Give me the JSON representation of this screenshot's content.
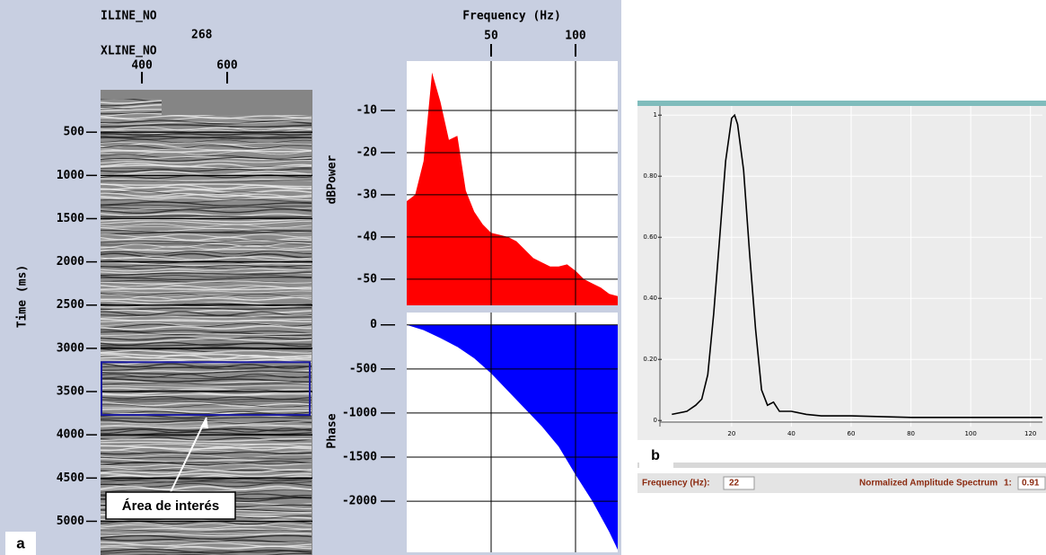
{
  "chart_data": [
    {
      "type": "seismic",
      "inline_label": "ILINE_NO",
      "inline": 268,
      "xline_label": "XLINE_NO",
      "y_label": "Time (ms)",
      "xlim": [
        303,
        800
      ],
      "xticks": [
        400,
        600
      ],
      "ylim": [
        5390,
        10
      ],
      "yticks": [
        500,
        1000,
        1500,
        2000,
        2500,
        3000,
        3500,
        4000,
        4500,
        5000
      ],
      "grid": true,
      "highlight": {
        "y": [
          3160,
          3770
        ],
        "label": "Área de interés"
      },
      "panel_label": "a"
    },
    {
      "type": "area",
      "x_label": "Frequency (Hz)",
      "y_label": "dBPower",
      "color": "#ff0000",
      "fill_to": "bottom",
      "x": [
        0,
        5,
        10,
        15,
        20,
        25,
        30,
        35,
        40,
        45,
        50,
        55,
        60,
        65,
        70,
        75,
        80,
        85,
        90,
        95,
        100,
        105,
        110,
        115,
        120,
        125
      ],
      "values": [
        -31.5,
        -30,
        -22,
        -1,
        -8,
        -17,
        -16,
        -29,
        -34,
        -37,
        -39,
        -39.5,
        -40,
        -41,
        -43,
        -45,
        -46,
        -47,
        -47,
        -46.5,
        -48,
        -50,
        -51,
        -52,
        -53.5,
        -54
      ],
      "xlim": [
        0,
        125
      ],
      "xticks": [
        50,
        100
      ],
      "ylim": [
        -56.2,
        1.7
      ],
      "yticks": [
        -10,
        -20,
        -30,
        -40,
        -50
      ],
      "grid": true
    },
    {
      "type": "area",
      "y_label": "Phase",
      "color": "#0000ff",
      "fill_to": "zero",
      "x": [
        0,
        10,
        20,
        30,
        40,
        50,
        60,
        70,
        80,
        90,
        100,
        110,
        120,
        125
      ],
      "values": [
        0,
        -60,
        -150,
        -250,
        -380,
        -550,
        -750,
        -950,
        -1150,
        -1380,
        -1700,
        -2000,
        -2350,
        -2550
      ],
      "xlim": [
        0,
        125
      ],
      "xticks": [
        50,
        100
      ],
      "ylim": [
        -2580,
        140
      ],
      "yticks": [
        0,
        -500,
        -1000,
        -1500,
        -2000
      ],
      "grid": true
    },
    {
      "type": "line",
      "color": "#000000",
      "panel_label": "b",
      "x": [
        0,
        5,
        8,
        10,
        12,
        14,
        16,
        18,
        20,
        21,
        22,
        24,
        26,
        28,
        30,
        32,
        34,
        36,
        40,
        45,
        50,
        60,
        80,
        100,
        124
      ],
      "values": [
        0.02,
        0.03,
        0.05,
        0.07,
        0.15,
        0.35,
        0.6,
        0.85,
        0.99,
        1,
        0.97,
        0.82,
        0.55,
        0.3,
        0.1,
        0.05,
        0.06,
        0.03,
        0.03,
        0.02,
        0.015,
        0.015,
        0.01,
        0.01,
        0.01
      ],
      "xlim": [
        -4,
        124
      ],
      "xticks": [
        20,
        40,
        60,
        80,
        100,
        120
      ],
      "ylim": [
        -0.02,
        1.03
      ],
      "yticks": [
        0,
        {
          "value": 0.2,
          "label": "0.20"
        },
        {
          "value": 0.4,
          "label": "0.40"
        },
        {
          "value": 0.6,
          "label": "0.60"
        },
        {
          "value": 0.8,
          "label": "0.80"
        },
        1
      ],
      "grid": true,
      "readout": {
        "frequency_label": "Frequency (Hz):",
        "frequency": 22,
        "spectrum_label": "Normalized Amplitude Spectrum",
        "ratio_label": "1:",
        "ratio": 0.91
      }
    }
  ]
}
